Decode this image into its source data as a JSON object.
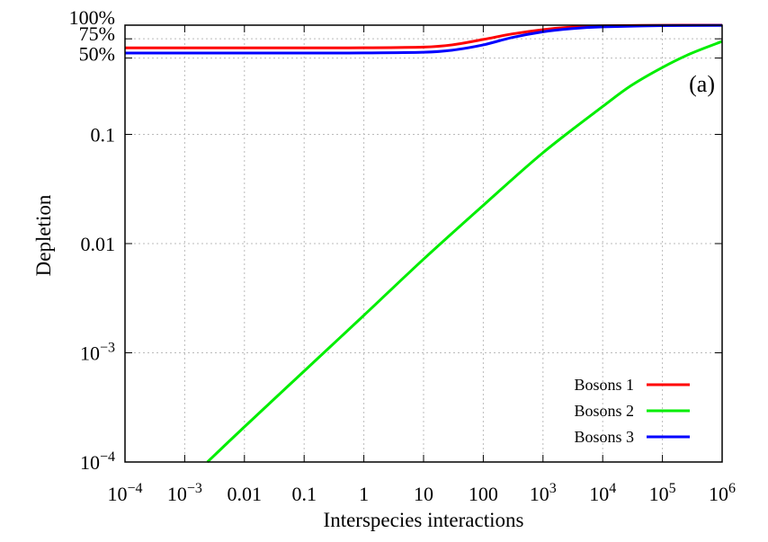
{
  "chart_data": {
    "type": "line",
    "xlabel": "Interspecies interactions",
    "ylabel": "Depletion",
    "annotation": "(a)",
    "xscale": "log",
    "yscale": "log",
    "xlim": [
      0.0001,
      1000000
    ],
    "ylim": [
      0.0001,
      1
    ],
    "grid": true,
    "legend_position": "bottom-right",
    "x_ticks": [
      {
        "value": 0.0001,
        "base": "10",
        "exp": "−4"
      },
      {
        "value": 0.001,
        "base": "10",
        "exp": "−3"
      },
      {
        "value": 0.01,
        "label": "0.01"
      },
      {
        "value": 0.1,
        "label": "0.1"
      },
      {
        "value": 1,
        "label": "1"
      },
      {
        "value": 10,
        "label": "10"
      },
      {
        "value": 100,
        "label": "100"
      },
      {
        "value": 1000,
        "base": "10",
        "exp": "3"
      },
      {
        "value": 10000,
        "base": "10",
        "exp": "4"
      },
      {
        "value": 100000,
        "base": "10",
        "exp": "5"
      },
      {
        "value": 1000000,
        "base": "10",
        "exp": "6"
      }
    ],
    "y_ticks": [
      {
        "value": 0.0001,
        "base": "10",
        "exp": "−4"
      },
      {
        "value": 0.001,
        "base": "10",
        "exp": "−3"
      },
      {
        "value": 0.01,
        "label": "0.01"
      },
      {
        "value": 0.1,
        "label": "0.1"
      },
      {
        "value": 0.5,
        "label": "50%"
      },
      {
        "value": 0.75,
        "label": "75%"
      },
      {
        "value": 1,
        "label": "100%"
      }
    ],
    "series": [
      {
        "name": "Bosons 1",
        "color": "#ff0000",
        "x": [
          0.0001,
          0.1,
          1,
          10,
          30,
          100,
          300,
          1000,
          3000,
          10000,
          100000,
          1000000
        ],
        "y": [
          0.62,
          0.62,
          0.621,
          0.63,
          0.66,
          0.74,
          0.83,
          0.91,
          0.96,
          0.985,
          0.998,
          1.0
        ]
      },
      {
        "name": "Bosons 2",
        "color": "#00ee00",
        "x": [
          0.0024,
          0.01,
          0.1,
          1,
          10,
          100,
          1000,
          10000,
          30000,
          100000,
          300000,
          1000000
        ],
        "y": [
          0.0001,
          0.00021,
          0.00068,
          0.0022,
          0.0072,
          0.0224,
          0.068,
          0.18,
          0.28,
          0.41,
          0.55,
          0.71
        ]
      },
      {
        "name": "Bosons 3",
        "color": "#0000ff",
        "x": [
          0.0001,
          0.1,
          1,
          10,
          30,
          100,
          300,
          1000,
          3000,
          10000,
          100000,
          1000000
        ],
        "y": [
          0.556,
          0.556,
          0.557,
          0.565,
          0.59,
          0.66,
          0.77,
          0.87,
          0.93,
          0.965,
          0.99,
          0.995
        ]
      }
    ]
  }
}
